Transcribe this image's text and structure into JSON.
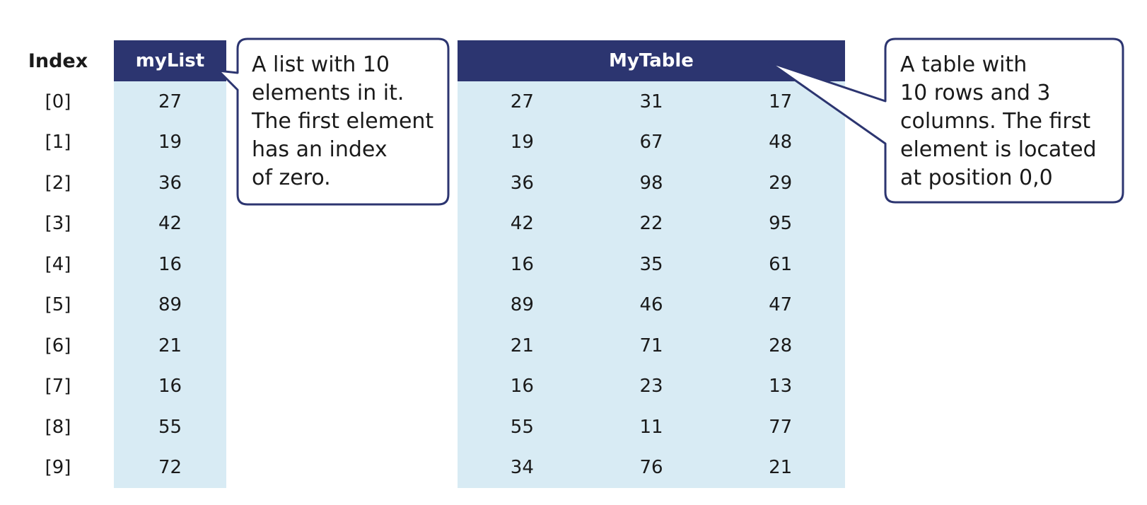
{
  "index_header": "Index",
  "indices": [
    "[0]",
    "[1]",
    "[2]",
    "[3]",
    "[4]",
    "[5]",
    "[6]",
    "[7]",
    "[8]",
    "[9]"
  ],
  "list": {
    "title": "myList",
    "values": [
      "27",
      "19",
      "36",
      "42",
      "16",
      "89",
      "21",
      "16",
      "55",
      "72"
    ]
  },
  "table": {
    "title": "MyTable",
    "rows": [
      [
        "27",
        "31",
        "17"
      ],
      [
        "19",
        "67",
        "48"
      ],
      [
        "36",
        "98",
        "29"
      ],
      [
        "42",
        "22",
        "95"
      ],
      [
        "16",
        "35",
        "61"
      ],
      [
        "89",
        "46",
        "47"
      ],
      [
        "21",
        "71",
        "28"
      ],
      [
        "16",
        "23",
        "13"
      ],
      [
        "55",
        "11",
        "77"
      ],
      [
        "34",
        "76",
        "21"
      ]
    ]
  },
  "callouts": {
    "list_note": "A list with 10\nelements in it.\nThe first element\nhas an index\nof zero.",
    "table_note": "A table with\n10 rows and 3\ncolumns. The first\nelement is located\nat position 0,0"
  },
  "colors": {
    "header_bg": "#2c3570",
    "cell_bg": "#d8ebf4",
    "callout_border": "#2c3570"
  }
}
